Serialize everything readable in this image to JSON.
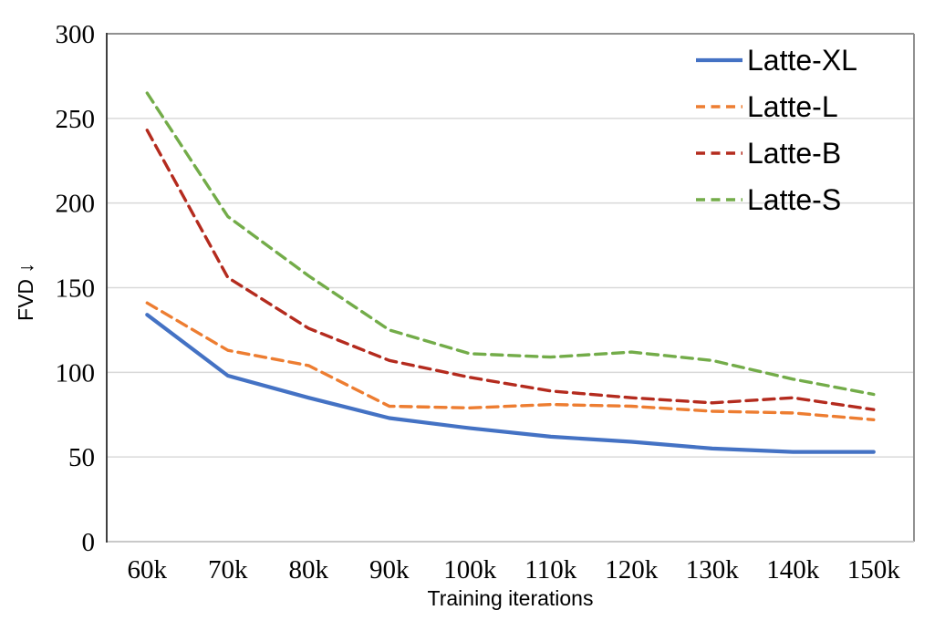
{
  "chart_data": {
    "type": "line",
    "title": "",
    "xlabel": "Training iterations",
    "ylabel": "FVD ↓",
    "categories": [
      "60k",
      "70k",
      "80k",
      "90k",
      "100k",
      "110k",
      "120k",
      "130k",
      "140k",
      "150k"
    ],
    "series": [
      {
        "name": "Latte-XL",
        "color": "#4472C4",
        "line_style": "solid",
        "values": [
          134,
          98,
          85,
          73,
          67,
          62,
          59,
          55,
          53,
          53
        ]
      },
      {
        "name": "Latte-L",
        "color": "#ED7D31",
        "line_style": "dashed",
        "values": [
          141,
          113,
          104,
          80,
          79,
          81,
          80,
          77,
          76,
          72
        ]
      },
      {
        "name": "Latte-B",
        "color": "#B42B1E",
        "line_style": "dashed",
        "values": [
          243,
          156,
          126,
          107,
          97,
          89,
          85,
          82,
          85,
          78
        ]
      },
      {
        "name": "Latte-S",
        "color": "#73AC49",
        "line_style": "dashed",
        "values": [
          265,
          192,
          157,
          125,
          111,
          109,
          112,
          107,
          96,
          87
        ]
      }
    ],
    "ylim": [
      0,
      300
    ],
    "yticks": [
      0,
      50,
      100,
      150,
      200,
      250,
      300
    ],
    "grid": true,
    "legend_position": "top-right-inside"
  },
  "style": {
    "background_color": "#FFFFFF",
    "grid_color": "#D9D9D9",
    "axis_left_color": "#3F3F3F",
    "border_color": "#909090",
    "border_bottom_color": "#C9C9C9",
    "text_color": "#000000"
  }
}
